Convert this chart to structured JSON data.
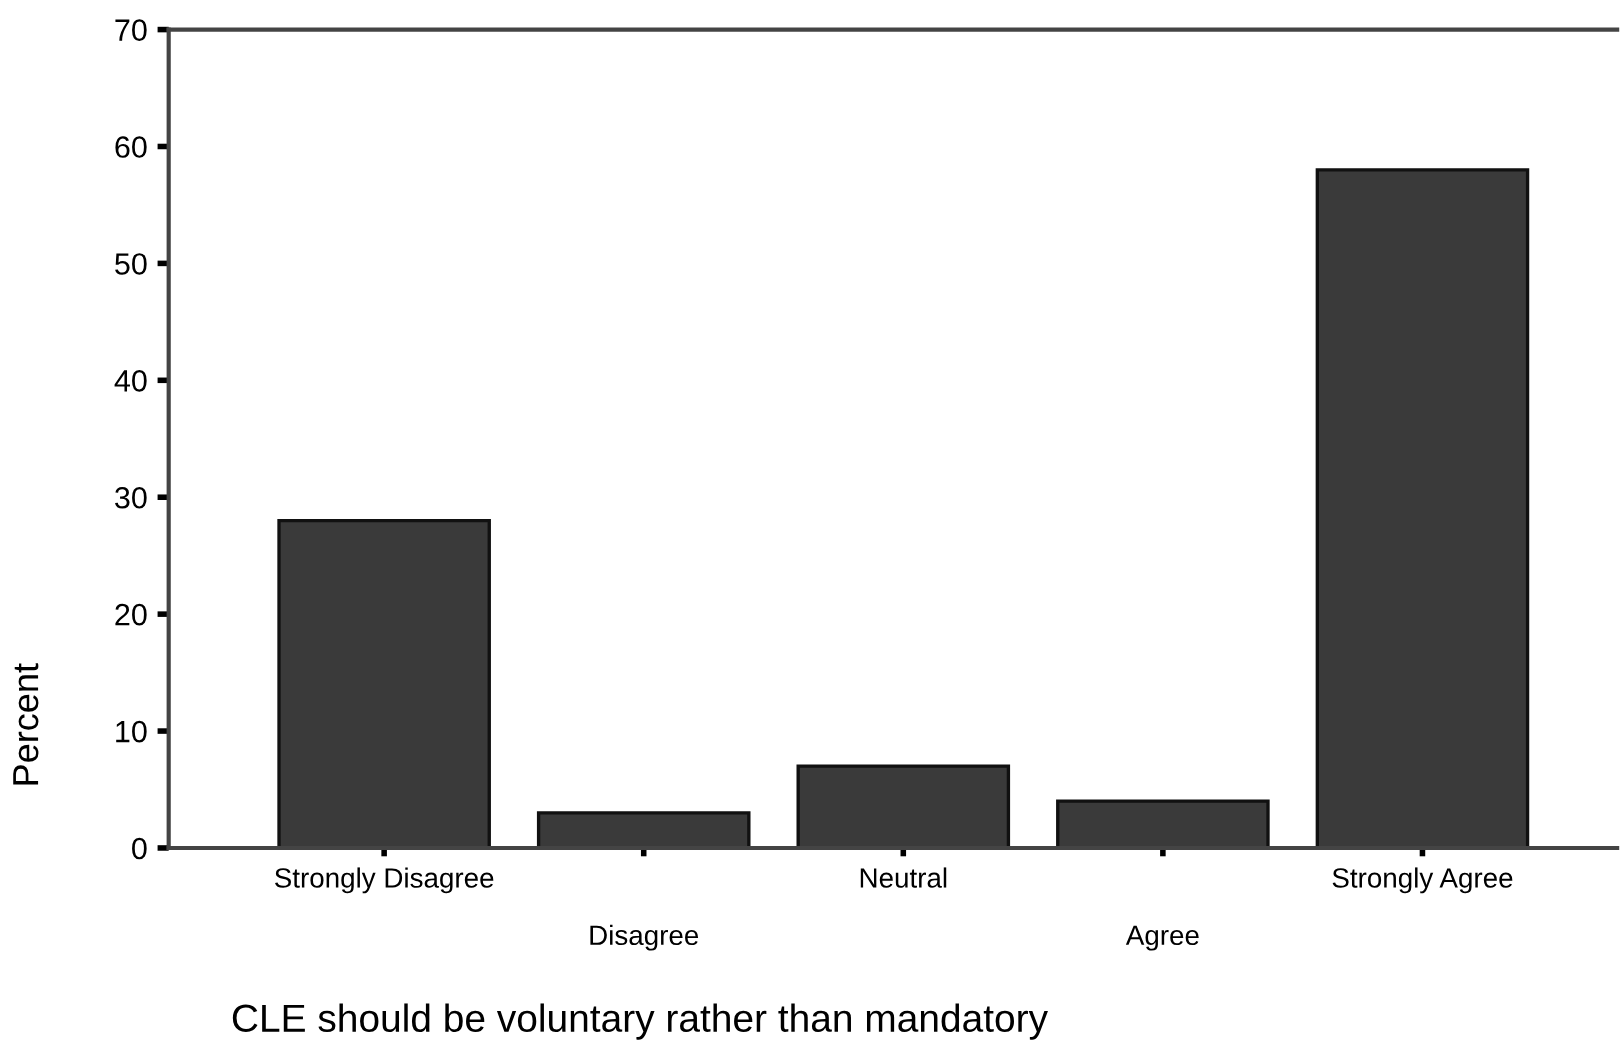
{
  "chart_data": {
    "type": "bar",
    "categories": [
      "Strongly Disagree",
      "Disagree",
      "Neutral",
      "Agree",
      "Strongly Agree"
    ],
    "values": [
      28,
      3,
      7,
      4,
      58
    ],
    "color": "#3a3a3a",
    "xlabel": "CLE should be voluntary rather than mandatory",
    "ylabel": "Percent",
    "ylim": [
      0,
      70
    ],
    "yticks": [
      0,
      10,
      20,
      30,
      40,
      50,
      60,
      70
    ],
    "grid": false,
    "legend": false
  }
}
